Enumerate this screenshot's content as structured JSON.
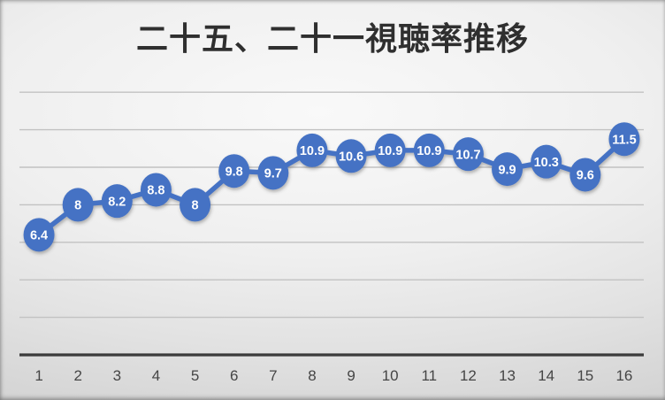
{
  "chart_data": {
    "type": "line",
    "title": "二十五、二十一視聴率推移",
    "categories": [
      "1",
      "2",
      "3",
      "4",
      "5",
      "6",
      "7",
      "8",
      "9",
      "10",
      "11",
      "12",
      "13",
      "14",
      "15",
      "16"
    ],
    "values": [
      6.4,
      8,
      8.2,
      8.8,
      8,
      9.8,
      9.7,
      10.9,
      10.6,
      10.9,
      10.9,
      10.7,
      9.9,
      10.3,
      9.6,
      11.5
    ],
    "data_labels": [
      "6.4",
      "8",
      "8.2",
      "8.8",
      "8",
      "9.8",
      "9.7",
      "10.9",
      "10.6",
      "10.9",
      "10.9",
      "10.7",
      "9.9",
      "10.3",
      "9.6",
      "11.5"
    ],
    "xlabel": "",
    "ylabel": "",
    "ylim": [
      0,
      14
    ],
    "gridline_step": 2,
    "grid": true,
    "legend": "none",
    "marker": "filled-circle-with-data-label",
    "y_axis_labels_visible": false
  },
  "colors": {
    "series": "#4472C4",
    "marker_label": "#FFFFFF",
    "gridline": "#C2C2C2",
    "axis_line": "#3B3B3B",
    "title_text": "#2F2F2F",
    "tick_label": "#454545"
  }
}
